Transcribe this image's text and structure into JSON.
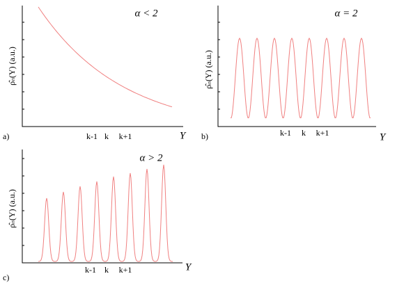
{
  "panels": [
    {
      "label": "a)",
      "annotation": "α < 2",
      "y_label": "ρ̂ₙ(Y) (a.u.)",
      "x_label": "Y",
      "ticks": [
        "k-1",
        "k",
        "k+1"
      ]
    },
    {
      "label": "b)",
      "annotation": "α = 2",
      "y_label": "ρ̂ₙ(Y) (a.u.)",
      "x_label": "Y",
      "ticks": [
        "k-1",
        "k",
        "k+1"
      ]
    },
    {
      "label": "c)",
      "annotation": "α > 2",
      "y_label": "ρ̂ₙ(Y) (a.u.)",
      "x_label": "Y",
      "ticks": [
        "k-1",
        "k",
        "k+1"
      ]
    }
  ]
}
